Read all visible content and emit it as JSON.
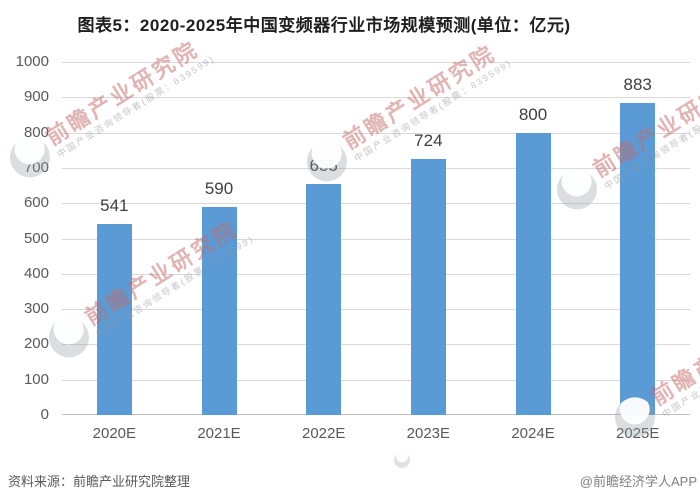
{
  "title": "图表5：2020-2025年中国变频器行业市场规模预测(单位：亿元)",
  "chart_data": {
    "type": "bar",
    "title": "图表5：2020-2025年中国变频器行业市场规模预测",
    "unit_label": "单位：亿元",
    "categories": [
      "2020E",
      "2021E",
      "2022E",
      "2023E",
      "2024E",
      "2025E"
    ],
    "values": [
      541,
      590,
      655,
      724,
      800,
      883
    ],
    "ylim": [
      0,
      1000
    ],
    "yticks": [
      0,
      100,
      200,
      300,
      400,
      500,
      600,
      700,
      800,
      900,
      1000
    ],
    "grid": true,
    "legend_position": "none",
    "bar_color": "#5B9BD5"
  },
  "footer": {
    "source": "资料来源：前瞻产业研究院整理",
    "credit": "@前瞻经济学人APP"
  },
  "watermark": {
    "logo": "qianzhan-eye-logo",
    "brand": "前瞻产业研究院",
    "subtext": "中国产业咨询领导者(股票：839599)"
  },
  "colors": {
    "bar": "#5B9BD5",
    "grid": "#D9D9D9",
    "axis": "#BFBFBF",
    "title_text": "#1F1F1F",
    "tick_text": "#595959",
    "value_text": "#3F3F3F",
    "source_text": "#595959",
    "credit_text": "#7F7F7F",
    "watermark_pink": "#C66A6A"
  }
}
